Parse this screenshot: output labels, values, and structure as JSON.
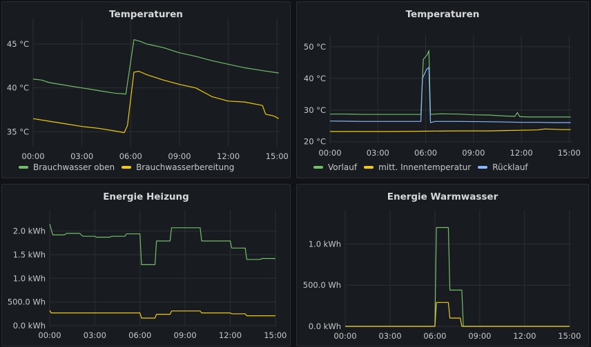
{
  "colors": {
    "green": "#73bf69",
    "yellow": "#f2cc0c",
    "blue": "#8ab8ff"
  },
  "chart_data": [
    {
      "type": "line",
      "title": "Temperaturen",
      "x_ticks": [
        "00:00",
        "03:00",
        "06:00",
        "09:00",
        "12:00",
        "15:00"
      ],
      "y_ticks": [
        "35 °C",
        "40 °C",
        "45 °C"
      ],
      "y_tick_values": [
        35,
        40,
        45
      ],
      "ylim": [
        33.3,
        47.2
      ],
      "xlim": [
        0,
        15.2
      ],
      "legend": "bottom",
      "series": [
        {
          "name": "Brauchwasser oben",
          "color": "#73bf69",
          "points": [
            [
              0,
              41.0
            ],
            [
              0.5,
              40.9
            ],
            [
              1,
              40.6
            ],
            [
              2,
              40.3
            ],
            [
              3,
              40.0
            ],
            [
              4,
              39.7
            ],
            [
              5,
              39.4
            ],
            [
              5.7,
              39.3
            ],
            [
              6.2,
              45.5
            ],
            [
              6.6,
              45.3
            ],
            [
              7,
              45.0
            ],
            [
              8,
              44.6
            ],
            [
              9,
              44.0
            ],
            [
              10,
              43.6
            ],
            [
              11,
              43.1
            ],
            [
              12,
              42.7
            ],
            [
              13,
              42.3
            ],
            [
              14,
              42.0
            ],
            [
              15.1,
              41.7
            ]
          ]
        },
        {
          "name": "Brauchwasserbereitung",
          "color": "#f2cc0c",
          "points": [
            [
              0,
              36.5
            ],
            [
              1,
              36.2
            ],
            [
              2,
              35.9
            ],
            [
              3,
              35.6
            ],
            [
              4,
              35.4
            ],
            [
              5,
              35.1
            ],
            [
              5.6,
              34.9
            ],
            [
              5.8,
              35.7
            ],
            [
              6.2,
              41.8
            ],
            [
              6.5,
              41.9
            ],
            [
              7,
              41.5
            ],
            [
              8,
              40.9
            ],
            [
              9,
              40.4
            ],
            [
              10,
              40.0
            ],
            [
              11,
              39.0
            ],
            [
              12,
              38.5
            ],
            [
              13,
              38.4
            ],
            [
              14.1,
              38.0
            ],
            [
              14.3,
              37.0
            ],
            [
              14.8,
              36.8
            ],
            [
              15.1,
              36.5
            ]
          ]
        }
      ]
    },
    {
      "type": "line",
      "title": "Temperaturen",
      "x_ticks": [
        "00:00",
        "03:00",
        "06:00",
        "09:00",
        "12:00",
        "15:00"
      ],
      "y_ticks": [
        "20 °C",
        "30 °C",
        "40 °C",
        "50 °C"
      ],
      "y_tick_values": [
        20,
        30,
        40,
        50
      ],
      "ylim": [
        19.5,
        51.5
      ],
      "xlim": [
        0,
        15.2
      ],
      "legend": "bottom",
      "series": [
        {
          "name": "Vorlauf",
          "color": "#73bf69",
          "points": [
            [
              0,
              28.7
            ],
            [
              1,
              28.7
            ],
            [
              2,
              28.6
            ],
            [
              3,
              28.6
            ],
            [
              4,
              28.6
            ],
            [
              5,
              28.6
            ],
            [
              5.7,
              28.6
            ],
            [
              5.85,
              46.0
            ],
            [
              6.1,
              47.5
            ],
            [
              6.2,
              48.8
            ],
            [
              6.3,
              28.6
            ],
            [
              6.6,
              28.7
            ],
            [
              7,
              28.8
            ],
            [
              8,
              28.7
            ],
            [
              9,
              28.5
            ],
            [
              10,
              28.4
            ],
            [
              11,
              28.1
            ],
            [
              11.6,
              28.0
            ],
            [
              11.75,
              29.2
            ],
            [
              11.9,
              27.9
            ],
            [
              12.5,
              27.8
            ],
            [
              14,
              27.8
            ],
            [
              15.1,
              27.8
            ]
          ]
        },
        {
          "name": "mitt. Innentemperatur",
          "color": "#f2cc0c",
          "points": [
            [
              0,
              23.2
            ],
            [
              2,
              23.2
            ],
            [
              4,
              23.2
            ],
            [
              6,
              23.3
            ],
            [
              8,
              23.4
            ],
            [
              10,
              23.4
            ],
            [
              11,
              23.5
            ],
            [
              12,
              23.6
            ],
            [
              13,
              23.7
            ],
            [
              13.5,
              24.0
            ],
            [
              14.5,
              23.8
            ],
            [
              15.1,
              23.8
            ]
          ]
        },
        {
          "name": "Rücklauf",
          "color": "#8ab8ff",
          "points": [
            [
              0,
              26.5
            ],
            [
              2,
              26.4
            ],
            [
              4,
              26.4
            ],
            [
              5.7,
              26.4
            ],
            [
              5.8,
              40.0
            ],
            [
              6.05,
              42.8
            ],
            [
              6.2,
              43.5
            ],
            [
              6.3,
              26.0
            ],
            [
              6.6,
              26.4
            ],
            [
              8,
              26.4
            ],
            [
              10,
              26.3
            ],
            [
              11,
              26.2
            ],
            [
              12,
              26.1
            ],
            [
              13,
              26.1
            ],
            [
              14,
              26.0
            ],
            [
              15.1,
              26.0
            ]
          ]
        }
      ]
    },
    {
      "type": "line",
      "title": "Energie Heizung",
      "x_ticks": [
        "00:00",
        "03:00",
        "06:00",
        "09:00",
        "12:00",
        "15:00"
      ],
      "y_ticks": [
        "0.0 kWh",
        "500.0 Wh",
        "1.0 kWh",
        "1.5 kWh",
        "2.0 kWh"
      ],
      "y_tick_values": [
        0,
        500,
        1000,
        1500,
        2000
      ],
      "ylim": [
        0,
        2300
      ],
      "xlim": [
        0,
        15.1
      ],
      "legend": "none",
      "series": [
        {
          "name": "",
          "color": "#73bf69",
          "points": [
            [
              0,
              2150
            ],
            [
              0.2,
              1920
            ],
            [
              1,
              1920
            ],
            [
              1.1,
              1950
            ],
            [
              2,
              1950
            ],
            [
              2.2,
              1890
            ],
            [
              3,
              1890
            ],
            [
              3.1,
              1870
            ],
            [
              4,
              1870
            ],
            [
              4.1,
              1890
            ],
            [
              5,
              1890
            ],
            [
              5.1,
              1940
            ],
            [
              6,
              1940
            ],
            [
              6.1,
              1290
            ],
            [
              7,
              1290
            ],
            [
              7.1,
              1790
            ],
            [
              8,
              1790
            ],
            [
              8.1,
              2070
            ],
            [
              10,
              2070
            ],
            [
              10.1,
              1790
            ],
            [
              12,
              1790
            ],
            [
              12.1,
              1640
            ],
            [
              13,
              1640
            ],
            [
              13.1,
              1400
            ],
            [
              14,
              1400
            ],
            [
              14.1,
              1420
            ],
            [
              15,
              1420
            ]
          ]
        },
        {
          "name": "",
          "color": "#f2cc0c",
          "points": [
            [
              0,
              320
            ],
            [
              0.1,
              270
            ],
            [
              3,
              270
            ],
            [
              6,
              270
            ],
            [
              6.1,
              160
            ],
            [
              7,
              160
            ],
            [
              7.1,
              240
            ],
            [
              8,
              240
            ],
            [
              8.1,
              310
            ],
            [
              10,
              310
            ],
            [
              10.1,
              270
            ],
            [
              12,
              270
            ],
            [
              12.1,
              250
            ],
            [
              13,
              250
            ],
            [
              13.1,
              210
            ],
            [
              14,
              210
            ],
            [
              15,
              210
            ]
          ]
        }
      ]
    },
    {
      "type": "line",
      "title": "Energie Warmwasser",
      "x_ticks": [
        "00:00",
        "03:00",
        "06:00",
        "09:00",
        "12:00",
        "15:00"
      ],
      "y_ticks": [
        "0.0 kWh",
        "500.0 Wh",
        "1.0 kWh"
      ],
      "y_tick_values": [
        0,
        500,
        1000
      ],
      "ylim": [
        0,
        1330
      ],
      "xlim": [
        0,
        15.1
      ],
      "legend": "none",
      "series": [
        {
          "name": "",
          "color": "#73bf69",
          "points": [
            [
              0,
              0
            ],
            [
              6,
              0
            ],
            [
              6.1,
              1200
            ],
            [
              6.9,
              1200
            ],
            [
              7.0,
              440
            ],
            [
              7.8,
              440
            ],
            [
              7.9,
              0
            ],
            [
              15,
              0
            ]
          ]
        },
        {
          "name": "",
          "color": "#f2cc0c",
          "points": [
            [
              0,
              0
            ],
            [
              6,
              0
            ],
            [
              6.1,
              290
            ],
            [
              6.9,
              290
            ],
            [
              7.0,
              100
            ],
            [
              7.7,
              100
            ],
            [
              7.8,
              0
            ],
            [
              15,
              0
            ]
          ]
        }
      ]
    }
  ]
}
